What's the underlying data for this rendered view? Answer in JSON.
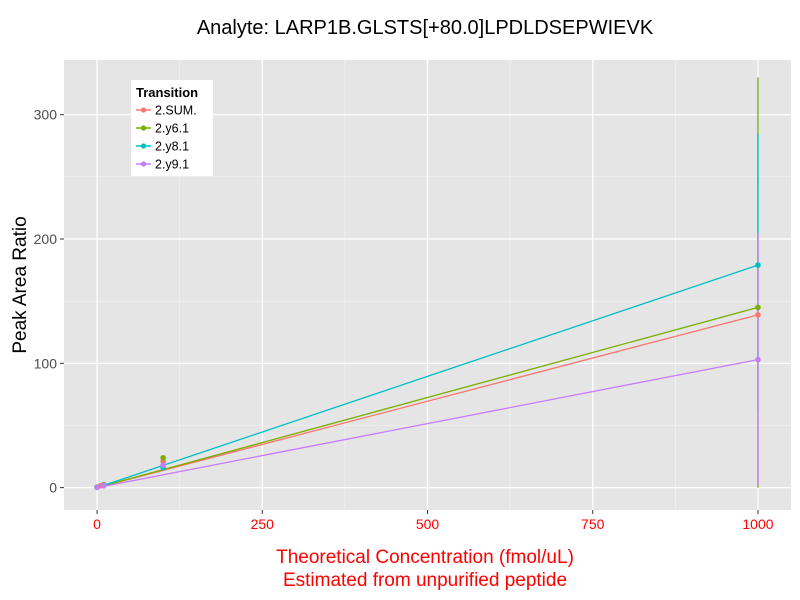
{
  "chart_data": {
    "type": "line",
    "title": "Analyte: LARP1B.GLSTS[+80.0]LPDLDSEPWIEVK",
    "xlabel_line1": "Theoretical Concentration (fmol/uL)",
    "xlabel_line2": "Estimated from unpurified peptide",
    "xlabel_color": "#ff0000",
    "xtick_color": "#ff0000",
    "ylabel": "Peak Area Ratio",
    "xlim": [
      -50,
      1050
    ],
    "ylim": [
      -18,
      344
    ],
    "xticks": [
      0,
      250,
      500,
      750,
      1000
    ],
    "yticks": [
      0,
      100,
      200,
      300
    ],
    "xtick_labels": [
      "0",
      "250",
      "500",
      "750",
      "1000"
    ],
    "ytick_labels": [
      "0",
      "100",
      "200",
      "300"
    ],
    "grid": true,
    "legend_title": "Transition",
    "legend_position": "top-left",
    "series": [
      {
        "name": "2.SUM.",
        "color": "#f8766d",
        "fit": [
          [
            0,
            0
          ],
          [
            1000,
            139
          ]
        ],
        "points": [
          [
            0,
            0.5
          ],
          [
            5,
            1.5
          ],
          [
            10,
            2.5
          ],
          [
            100,
            21
          ],
          [
            1000,
            139
          ]
        ],
        "error_bars": []
      },
      {
        "name": "2.y6.1",
        "color": "#7cae00",
        "fit": [
          [
            0,
            0
          ],
          [
            1000,
            145
          ]
        ],
        "points": [
          [
            0,
            0.3
          ],
          [
            10,
            2
          ],
          [
            100,
            24
          ],
          [
            1000,
            145
          ]
        ],
        "error_bars": [
          [
            1000,
            0,
            330
          ]
        ]
      },
      {
        "name": "2.y8.1",
        "color": "#00bfc4",
        "fit": [
          [
            0,
            0
          ],
          [
            1000,
            179
          ]
        ],
        "points": [
          [
            0,
            0.3
          ],
          [
            10,
            2
          ],
          [
            100,
            16
          ],
          [
            1000,
            179
          ]
        ],
        "error_bars": [
          [
            1000,
            60,
            285
          ]
        ]
      },
      {
        "name": "2.y9.1",
        "color": "#c77cff",
        "fit": [
          [
            0,
            0
          ],
          [
            1000,
            103
          ]
        ],
        "points": [
          [
            0,
            0.2
          ],
          [
            10,
            1.5
          ],
          [
            100,
            18
          ],
          [
            1000,
            103
          ]
        ],
        "error_bars": [
          [
            1000,
            2,
            205
          ]
        ]
      }
    ]
  }
}
